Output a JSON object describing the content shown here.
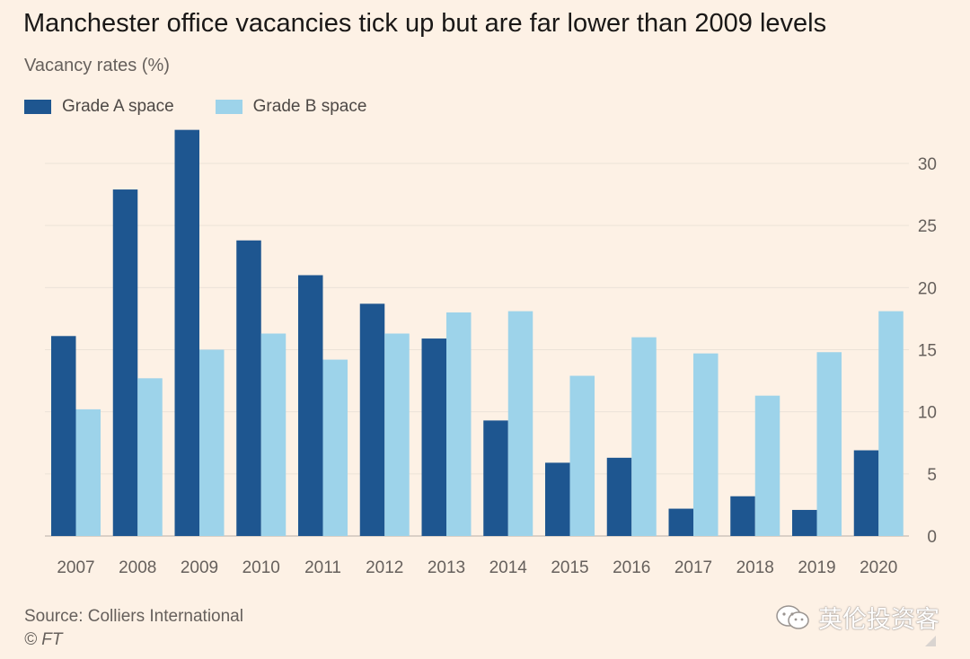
{
  "chart_data": {
    "type": "bar",
    "title": "Manchester office vacancies tick up but are far lower than 2009 levels",
    "ylabel": "Vacancy rates (%)",
    "xlabel": "",
    "categories": [
      "2007",
      "2008",
      "2009",
      "2010",
      "2011",
      "2012",
      "2013",
      "2014",
      "2015",
      "2016",
      "2017",
      "2018",
      "2019",
      "2020"
    ],
    "series": [
      {
        "name": "Grade A space",
        "color": "#1e5690",
        "values": [
          16.1,
          27.9,
          32.7,
          23.8,
          21.0,
          18.7,
          15.9,
          9.3,
          5.9,
          6.3,
          2.2,
          3.2,
          2.1,
          6.9
        ]
      },
      {
        "name": "Grade B space",
        "color": "#9dd3ea",
        "values": [
          10.2,
          12.7,
          15.0,
          16.3,
          14.2,
          16.3,
          18.0,
          18.1,
          12.9,
          16.0,
          14.7,
          11.3,
          14.8,
          18.1
        ]
      }
    ],
    "ylim": [
      0,
      33
    ],
    "yticks": [
      0,
      5,
      10,
      15,
      20,
      25,
      30
    ],
    "grid": true,
    "legend": "top-left"
  },
  "source": "Source: Colliers International",
  "copyright": "© FT",
  "watermark": "英伦投资客",
  "colors": {
    "background": "#fdf1e5",
    "gridline": "#ece2d8",
    "axis_text": "#66605c"
  }
}
